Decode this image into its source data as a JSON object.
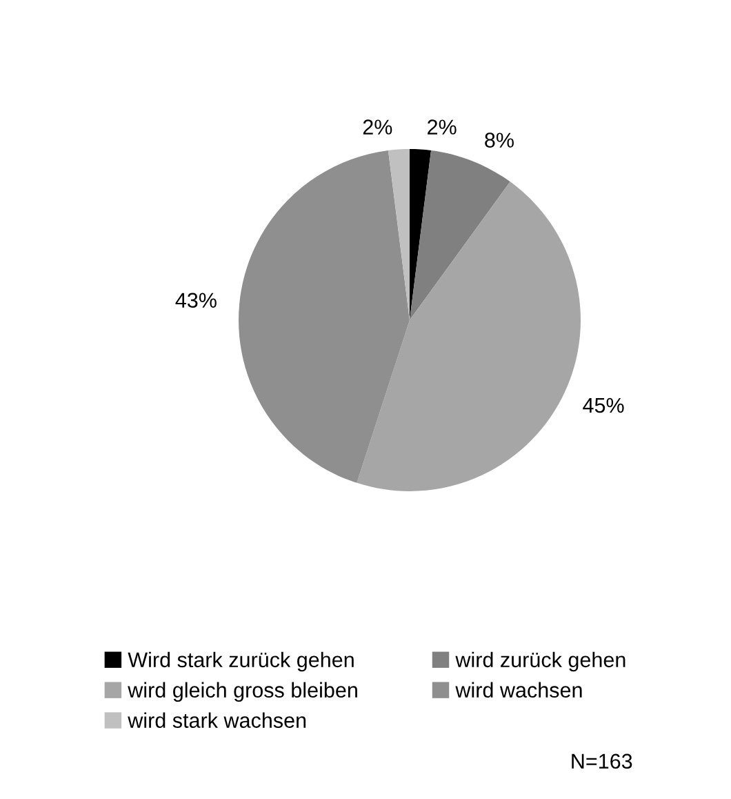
{
  "chart_data": {
    "type": "pie",
    "categories": [
      "Wird stark zurück gehen",
      "wird zurück gehen",
      "wird gleich gross bleiben",
      "wird wachsen",
      "wird stark wachsen"
    ],
    "values": [
      2,
      8,
      45,
      43,
      2
    ],
    "colors": [
      "#000000",
      "#808080",
      "#a6a6a6",
      "#8f8f8f",
      "#c0c0c0"
    ],
    "value_labels": [
      "2%",
      "8%",
      "45%",
      "43%",
      "2%"
    ],
    "legend": "bottom",
    "annotations": [
      "N=163"
    ]
  }
}
